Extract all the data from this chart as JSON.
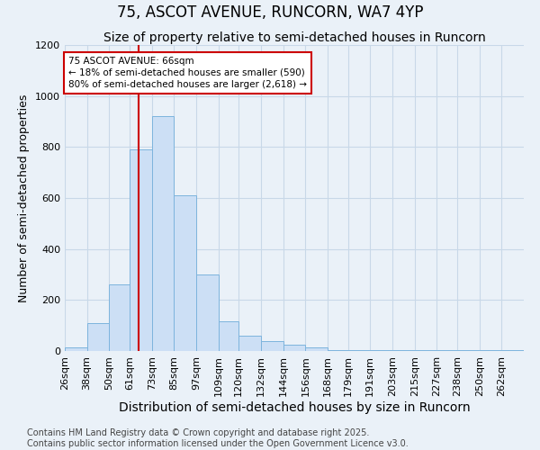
{
  "title1": "75, ASCOT AVENUE, RUNCORN, WA7 4YP",
  "title2": "Size of property relative to semi-detached houses in Runcorn",
  "xlabel": "Distribution of semi-detached houses by size in Runcorn",
  "ylabel": "Number of semi-detached properties",
  "bins": [
    "26sqm",
    "38sqm",
    "50sqm",
    "61sqm",
    "73sqm",
    "85sqm",
    "97sqm",
    "109sqm",
    "120sqm",
    "132sqm",
    "144sqm",
    "156sqm",
    "168sqm",
    "179sqm",
    "191sqm",
    "203sqm",
    "215sqm",
    "227sqm",
    "238sqm",
    "250sqm",
    "262sqm"
  ],
  "bin_edges": [
    26,
    38,
    50,
    61,
    73,
    85,
    97,
    109,
    120,
    132,
    144,
    156,
    168,
    179,
    191,
    203,
    215,
    227,
    238,
    250,
    262
  ],
  "bar_heights": [
    15,
    110,
    260,
    790,
    920,
    610,
    300,
    115,
    60,
    40,
    25,
    15,
    5,
    3,
    3,
    2,
    2,
    2,
    2,
    2,
    2
  ],
  "bar_color": "#ccdff5",
  "bar_edge_color": "#7db4dd",
  "grid_color": "#c8d8e8",
  "background_color": "#eaf1f8",
  "vline_x": 66,
  "vline_color": "#cc0000",
  "annotation_text": "75 ASCOT AVENUE: 66sqm\n← 18% of semi-detached houses are smaller (590)\n80% of semi-detached houses are larger (2,618) →",
  "annotation_box_color": "#ffffff",
  "annotation_box_edge": "#cc0000",
  "ylim": [
    0,
    1200
  ],
  "yticks": [
    0,
    200,
    400,
    600,
    800,
    1000,
    1200
  ],
  "footnote": "Contains HM Land Registry data © Crown copyright and database right 2025.\nContains public sector information licensed under the Open Government Licence v3.0.",
  "title1_fontsize": 12,
  "title2_fontsize": 10,
  "xlabel_fontsize": 10,
  "ylabel_fontsize": 9,
  "tick_fontsize": 8,
  "footnote_fontsize": 7
}
